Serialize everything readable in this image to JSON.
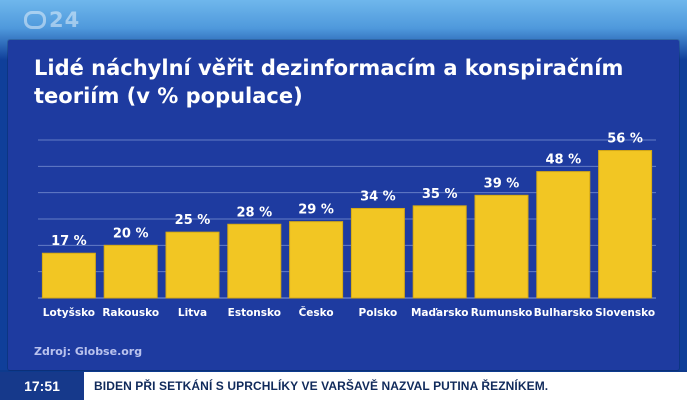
{
  "channel": {
    "name": "24"
  },
  "graphic": {
    "title": "Lidé náchylní věřit dezinformacím a konspiračním teoriím (v % populace)",
    "source": "Zdroj: Globse.org"
  },
  "chart_data": {
    "type": "bar",
    "title": "Lidé náchylní věřit dezinformacím a konspiračním teoriím (v % populace)",
    "xlabel": "",
    "ylabel": "",
    "categories": [
      "Lotyšsko",
      "Rakousko",
      "Litva",
      "Estonsko",
      "Česko",
      "Polsko",
      "Maďarsko",
      "Rumunsko",
      "Bulharsko",
      "Slovensko"
    ],
    "values": [
      17,
      20,
      25,
      28,
      29,
      34,
      35,
      39,
      48,
      56
    ],
    "value_labels": [
      "17 %",
      "20 %",
      "25 %",
      "28 %",
      "29 %",
      "34 %",
      "35 %",
      "39 %",
      "48 %",
      "56 %"
    ],
    "ylim": [
      0,
      60
    ],
    "grid": true,
    "legend": "none",
    "bar_color": "#f2c623",
    "background_color": "#1e3ba0",
    "label_color": "#ffffff",
    "grid_color": "#8aa0db"
  },
  "ticker": {
    "time": "17:51",
    "headline": "BIDEN PŘI SETKÁNÍ S UPRCHLÍKY VE VARŠAVĚ NAZVAL PUTINA ŘEZNÍKEM."
  }
}
